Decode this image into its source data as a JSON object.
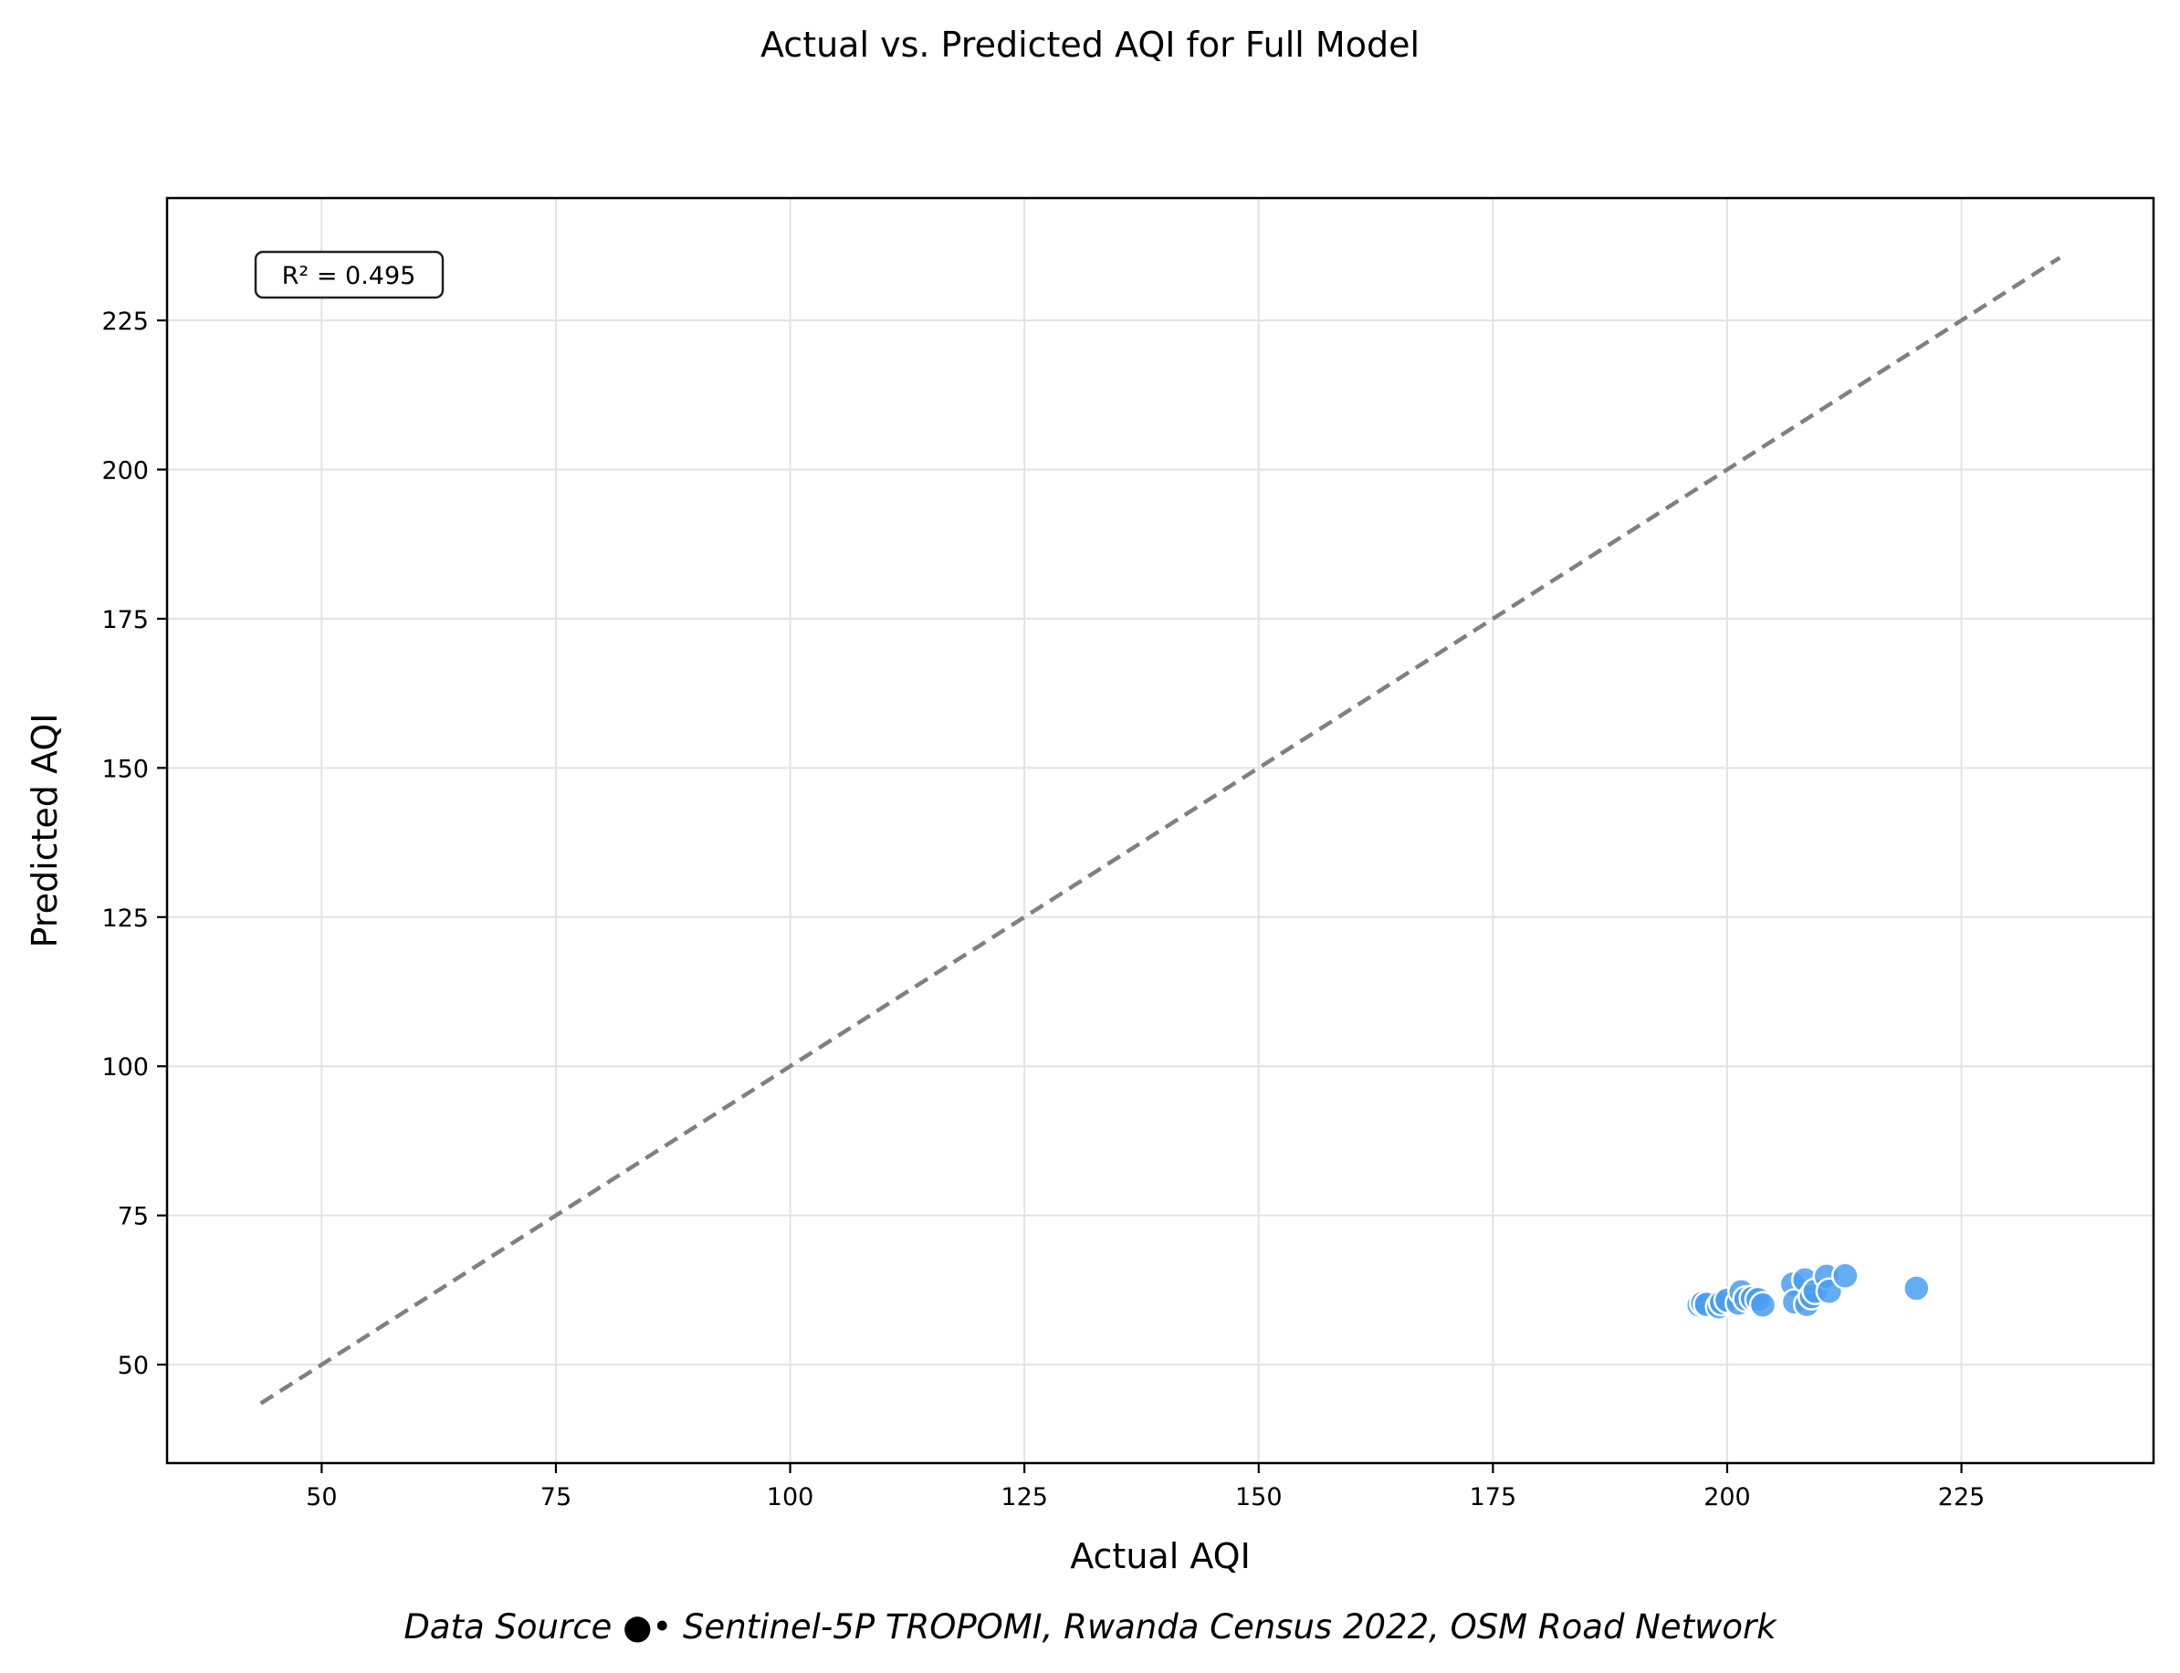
{
  "chart_data": {
    "type": "scatter",
    "title": "Actual vs. Predicted AQI for Full Model",
    "xlabel": "Actual AQI",
    "ylabel": "Predicted AQI",
    "xlim": [
      33.5,
      245.5
    ],
    "ylim": [
      33.5,
      245.5
    ],
    "xticks": [
      50,
      75,
      100,
      125,
      150,
      175,
      200,
      225
    ],
    "yticks": [
      50,
      75,
      100,
      125,
      150,
      175,
      200,
      225
    ],
    "grid": true,
    "annotation": "R² = 0.495",
    "reference_line": {
      "style": "dashed",
      "color": "#808080",
      "from": [
        43.5,
        43.5
      ],
      "to": [
        235.5,
        235.5
      ]
    },
    "point_color": "#4a9df0",
    "points": [
      [
        197.0,
        60.0
      ],
      [
        197.4,
        60.3
      ],
      [
        197.8,
        60.1
      ],
      [
        199.1,
        59.7
      ],
      [
        199.4,
        60.4
      ],
      [
        200.0,
        60.8
      ],
      [
        201.2,
        60.3
      ],
      [
        201.5,
        62.2
      ],
      [
        202.0,
        61.0
      ],
      [
        202.7,
        61.1
      ],
      [
        203.3,
        60.9
      ],
      [
        203.8,
        60.0
      ],
      [
        207.0,
        63.5
      ],
      [
        207.2,
        60.5
      ],
      [
        208.3,
        64.2
      ],
      [
        208.5,
        60.1
      ],
      [
        209.0,
        61.4
      ],
      [
        209.4,
        62.3
      ],
      [
        210.6,
        64.8
      ],
      [
        210.9,
        62.3
      ],
      [
        212.6,
        64.9
      ],
      [
        220.2,
        62.8
      ]
    ]
  },
  "footer": "Data Source ●• Sentinel-5P TROPOMI, Rwanda Census 2022, OSM Road Network"
}
